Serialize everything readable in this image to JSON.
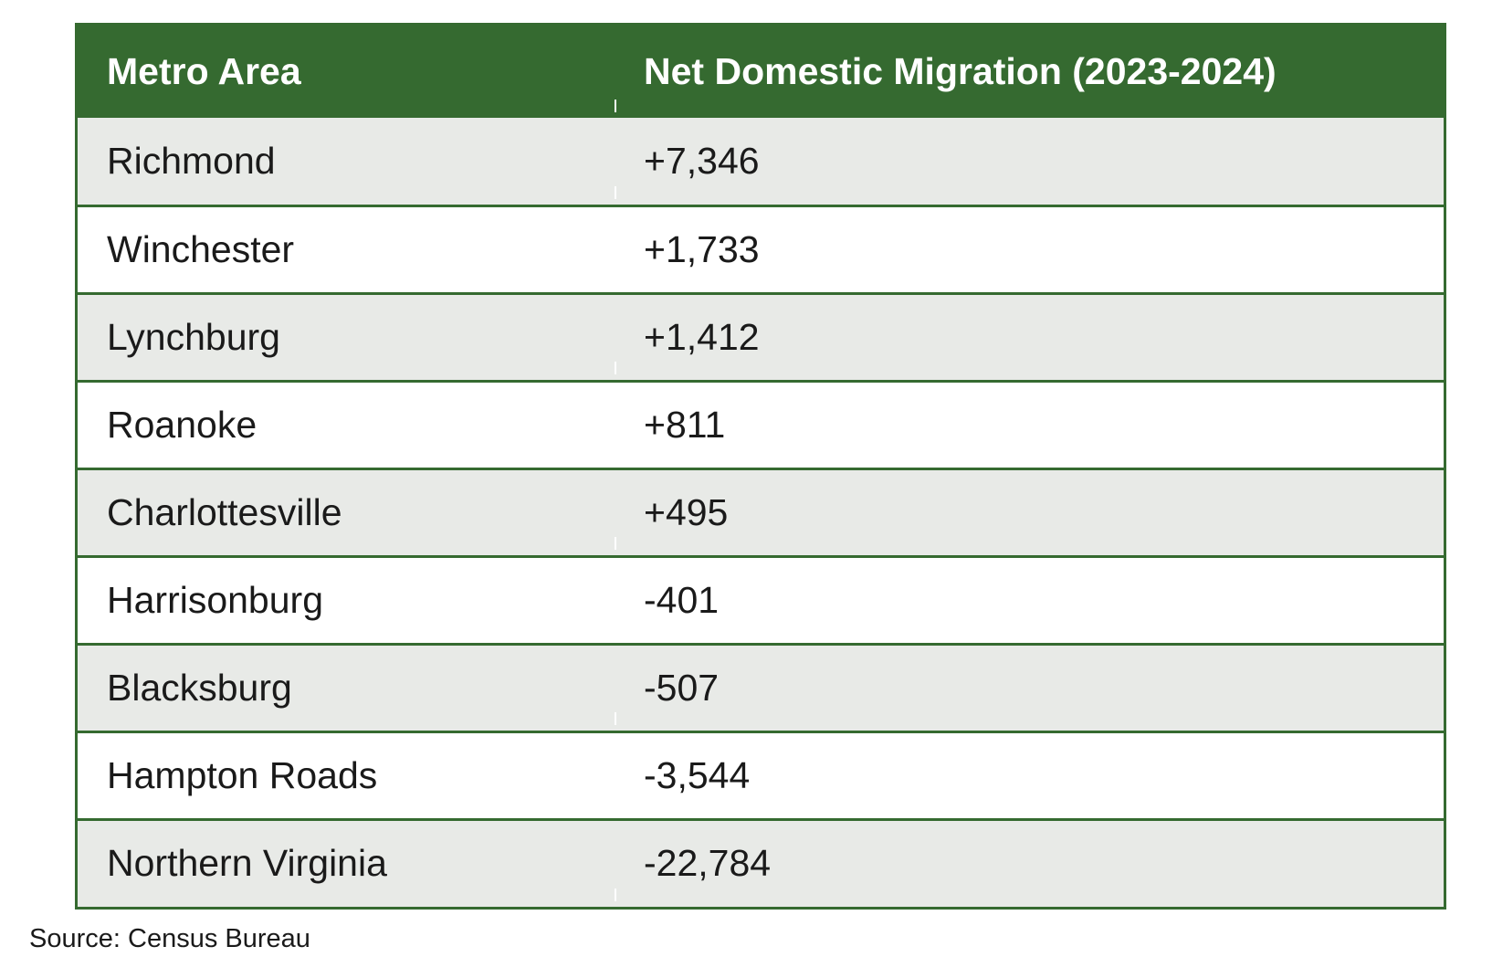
{
  "table": {
    "headers": [
      "Metro Area",
      "Net Domestic Migration (2023-2024)"
    ],
    "rows": [
      {
        "metro": "Richmond",
        "value": "+7,346"
      },
      {
        "metro": "Winchester",
        "value": "+1,733"
      },
      {
        "metro": "Lynchburg",
        "value": "+1,412"
      },
      {
        "metro": "Roanoke",
        "value": "+811"
      },
      {
        "metro": "Charlottesville",
        "value": "+495"
      },
      {
        "metro": "Harrisonburg",
        "value": "-401"
      },
      {
        "metro": "Blacksburg",
        "value": "-507"
      },
      {
        "metro": "Hampton Roads",
        "value": "-3,544"
      },
      {
        "metro": "Northern Virginia",
        "value": "-22,784"
      }
    ]
  },
  "source": "Source: Census Bureau",
  "colors": {
    "header_bg": "#356a30",
    "header_text": "#ffffff",
    "row_shaded": "#e8eae7",
    "row_plain": "#ffffff",
    "border": "#356a30"
  }
}
